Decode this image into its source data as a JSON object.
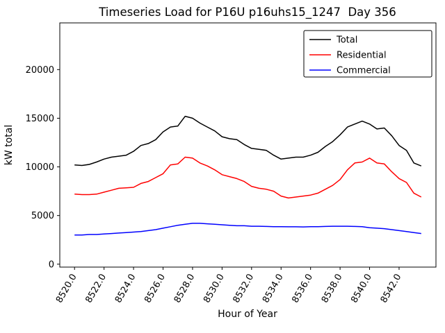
{
  "chart_data": {
    "type": "line",
    "title": "Timeseries Load for P16U p16uhs15_1247  Day 356",
    "xlabel": "Hour of Year",
    "ylabel": "kW total",
    "grid": false,
    "legend_position": "upper right",
    "xlim": [
      8519.0,
      8544.5
    ],
    "ylim": [
      -300,
      24800
    ],
    "xticks": [
      8520,
      8522,
      8524,
      8526,
      8528,
      8530,
      8532,
      8534,
      8536,
      8538,
      8540,
      8542
    ],
    "xtick_labels": [
      "8520.0",
      "8522.0",
      "8524.0",
      "8526.0",
      "8528.0",
      "8530.0",
      "8532.0",
      "8534.0",
      "8536.0",
      "8538.0",
      "8540.0",
      "8542.0"
    ],
    "yticks": [
      0,
      5000,
      10000,
      15000,
      20000
    ],
    "ytick_labels": [
      "0",
      "5000",
      "10000",
      "15000",
      "20000"
    ],
    "x": [
      8520.0,
      8520.5,
      8521.0,
      8521.5,
      8522.0,
      8522.5,
      8523.0,
      8523.5,
      8524.0,
      8524.5,
      8525.0,
      8525.5,
      8526.0,
      8526.5,
      8527.0,
      8527.5,
      8528.0,
      8528.5,
      8529.0,
      8529.5,
      8530.0,
      8530.5,
      8531.0,
      8531.5,
      8532.0,
      8532.5,
      8533.0,
      8533.5,
      8534.0,
      8534.5,
      8535.0,
      8535.5,
      8536.0,
      8536.5,
      8537.0,
      8537.5,
      8538.0,
      8538.5,
      8539.0,
      8539.5,
      8540.0,
      8540.5,
      8541.0,
      8541.5,
      8542.0,
      8542.5,
      8543.0,
      8543.5
    ],
    "series": [
      {
        "name": "Total",
        "color": "#000000",
        "values": [
          10200,
          10150,
          10250,
          10500,
          10800,
          11000,
          11100,
          11200,
          11600,
          12200,
          12400,
          12800,
          13600,
          14100,
          14200,
          15200,
          15000,
          14500,
          14100,
          13700,
          13100,
          12900,
          12800,
          12300,
          11900,
          11800,
          11700,
          11200,
          10800,
          10900,
          11000,
          11000,
          11200,
          11500,
          12100,
          12600,
          13300,
          14100,
          14400,
          14700,
          14400,
          13900,
          14000,
          13200,
          12200,
          11700,
          10400,
          10100
        ]
      },
      {
        "name": "Residential",
        "color": "#ff0000",
        "values": [
          7200,
          7150,
          7150,
          7200,
          7400,
          7600,
          7800,
          7850,
          7900,
          8300,
          8500,
          8900,
          9300,
          10200,
          10300,
          11000,
          10900,
          10400,
          10100,
          9700,
          9200,
          9000,
          8800,
          8500,
          8000,
          7800,
          7700,
          7500,
          7000,
          6800,
          6900,
          7000,
          7100,
          7300,
          7700,
          8100,
          8700,
          9700,
          10400,
          10500,
          10900,
          10400,
          10300,
          9500,
          8800,
          8400,
          7300,
          6900
        ]
      },
      {
        "name": "Commercial",
        "color": "#0000ff",
        "values": [
          3000,
          3000,
          3050,
          3050,
          3100,
          3150,
          3200,
          3250,
          3300,
          3350,
          3450,
          3550,
          3700,
          3850,
          4000,
          4100,
          4200,
          4200,
          4150,
          4100,
          4050,
          4000,
          3950,
          3950,
          3900,
          3900,
          3880,
          3860,
          3850,
          3840,
          3840,
          3830,
          3850,
          3860,
          3880,
          3900,
          3900,
          3900,
          3880,
          3850,
          3750,
          3700,
          3650,
          3550,
          3450,
          3350,
          3250,
          3150
        ]
      }
    ]
  }
}
